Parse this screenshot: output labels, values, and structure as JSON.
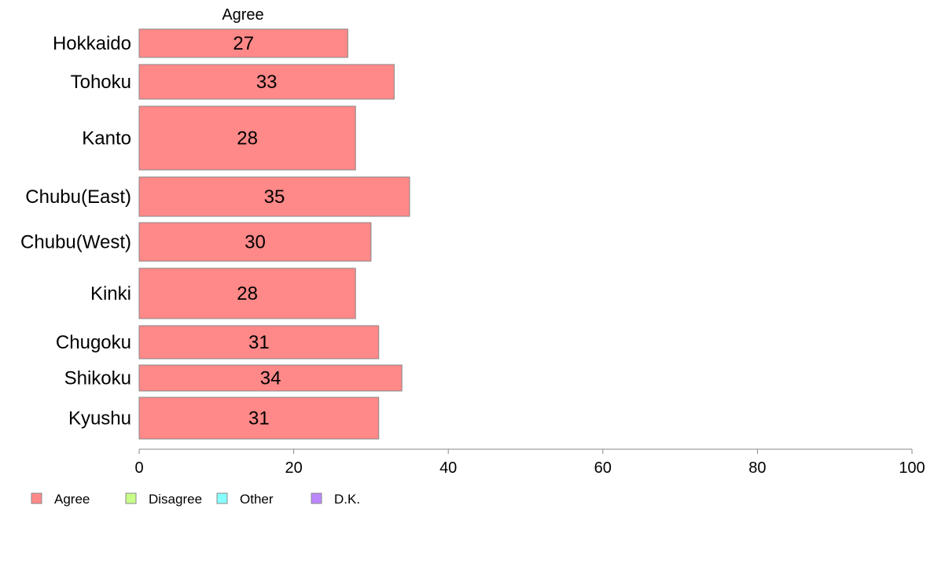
{
  "chart_data": {
    "type": "bar",
    "orientation": "horizontal",
    "stacked": true,
    "column_header": "Agree",
    "categories": [
      "Hokkaido",
      "Tohoku",
      "Kanto",
      "Chubu(East)",
      "Chubu(West)",
      "Kinki",
      "Chugoku",
      "Shikoku",
      "Kyushu"
    ],
    "series": [
      {
        "name": "Agree",
        "color": "#ff8888",
        "values": [
          27,
          33,
          28,
          35,
          30,
          28,
          31,
          34,
          31
        ]
      }
    ],
    "legend": [
      {
        "label": "Agree",
        "color": "#ff8888"
      },
      {
        "label": "Disagree",
        "color": "#c8ff88"
      },
      {
        "label": "Other",
        "color": "#88ffff"
      },
      {
        "label": "D.K.",
        "color": "#bb88ff"
      }
    ],
    "xlim": [
      0,
      100
    ],
    "xticks": [
      0,
      20,
      40,
      60,
      80,
      100
    ],
    "legend_position": "bottom-left",
    "grid": false
  }
}
